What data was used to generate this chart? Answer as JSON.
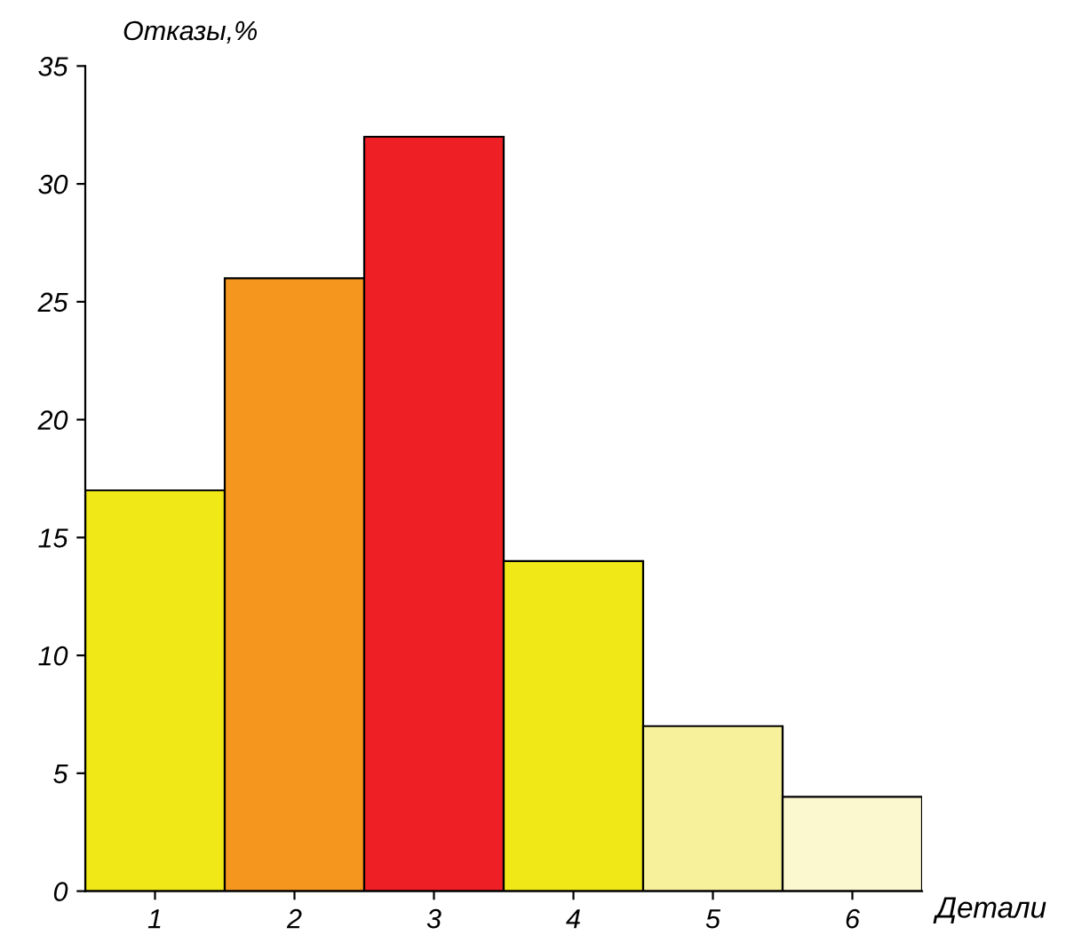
{
  "chart_data": {
    "type": "bar",
    "xlabel": "Детали",
    "ylabel": "Отказы,%",
    "categories": [
      "1",
      "2",
      "3",
      "4",
      "5",
      "6"
    ],
    "values": [
      17,
      26,
      32,
      14,
      7,
      4
    ],
    "colors": [
      "#f0e817",
      "#f5971f",
      "#ee1f25",
      "#f0e817",
      "#f6f19a",
      "#fbf7cf"
    ],
    "ylim": [
      0,
      35
    ],
    "yticks": [
      0,
      5,
      10,
      15,
      20,
      25,
      30,
      35
    ],
    "grid": false,
    "legend": false
  }
}
